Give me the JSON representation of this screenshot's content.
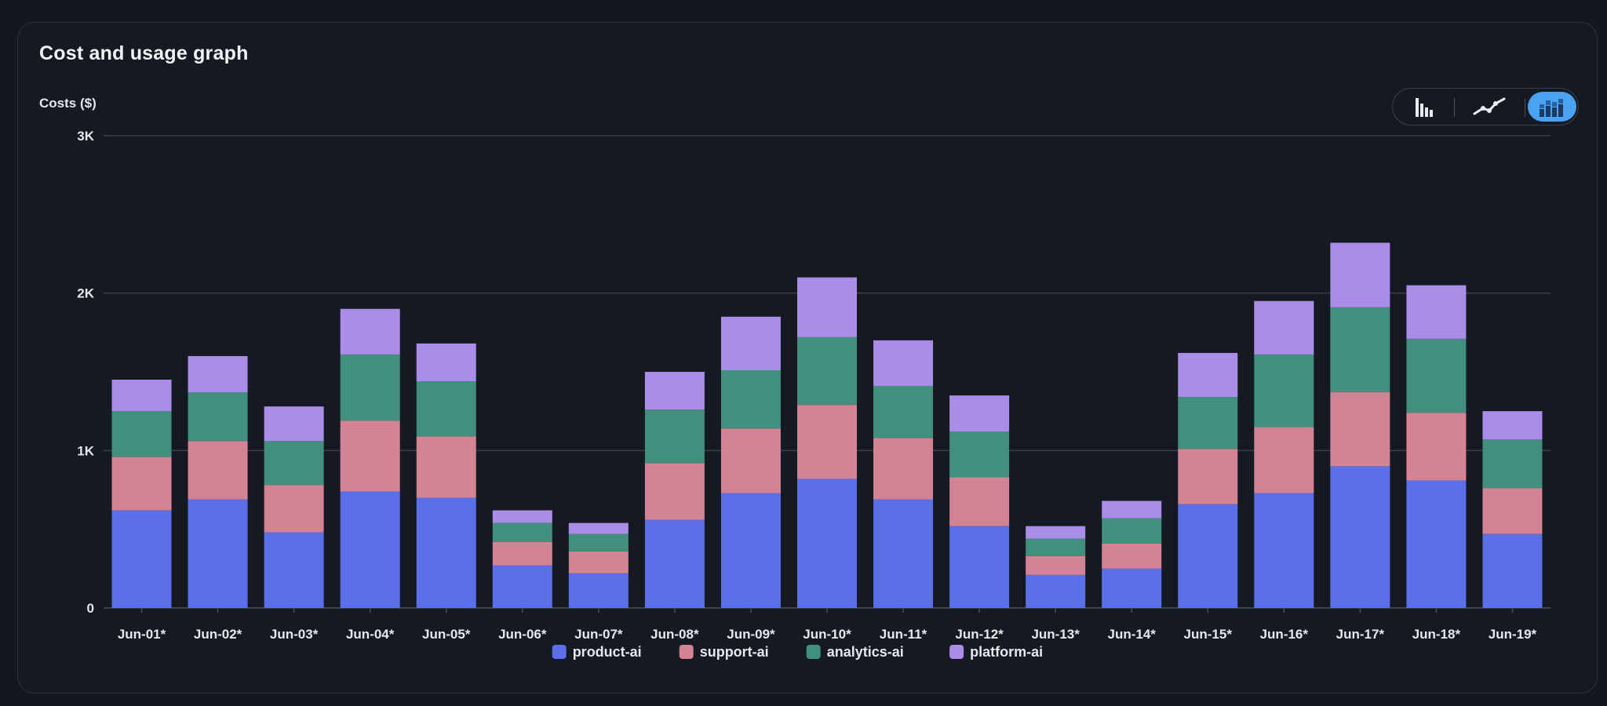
{
  "panel": {
    "title": "Cost and usage graph"
  },
  "view_toggle": {
    "options": [
      {
        "name": "bar-chart-icon",
        "active": false
      },
      {
        "name": "line-chart-icon",
        "active": false
      },
      {
        "name": "stacked-bar-chart-icon",
        "active": true
      }
    ],
    "active_color": "#4aa3f0"
  },
  "chart_data": {
    "type": "bar",
    "stacked": true,
    "title": "",
    "xlabel": "",
    "ylabel": "Costs ($)",
    "ylim": [
      0,
      3000
    ],
    "yticks": [
      {
        "value": 0,
        "label": "0"
      },
      {
        "value": 1000,
        "label": "1K"
      },
      {
        "value": 2000,
        "label": "2K"
      },
      {
        "value": 3000,
        "label": "3K"
      }
    ],
    "grid": true,
    "legend_position": "bottom",
    "categories": [
      "Jun-01*",
      "Jun-02*",
      "Jun-03*",
      "Jun-04*",
      "Jun-05*",
      "Jun-06*",
      "Jun-07*",
      "Jun-08*",
      "Jun-09*",
      "Jun-10*",
      "Jun-11*",
      "Jun-12*",
      "Jun-13*",
      "Jun-14*",
      "Jun-15*",
      "Jun-16*",
      "Jun-17*",
      "Jun-18*",
      "Jun-19*"
    ],
    "series": [
      {
        "name": "product-ai",
        "color": "#5b6fe8",
        "values": [
          620,
          690,
          480,
          740,
          700,
          270,
          220,
          560,
          730,
          820,
          690,
          520,
          210,
          250,
          660,
          730,
          900,
          810,
          470
        ]
      },
      {
        "name": "support-ai",
        "color": "#d48395",
        "values": [
          340,
          370,
          300,
          450,
          390,
          150,
          140,
          360,
          410,
          470,
          390,
          310,
          120,
          160,
          350,
          420,
          470,
          430,
          290
        ]
      },
      {
        "name": "analytics-ai",
        "color": "#428f7d",
        "values": [
          290,
          310,
          280,
          420,
          350,
          120,
          110,
          340,
          370,
          430,
          330,
          290,
          110,
          160,
          330,
          460,
          540,
          470,
          310
        ]
      },
      {
        "name": "platform-ai",
        "color": "#a98de8",
        "values": [
          200,
          230,
          220,
          290,
          240,
          80,
          70,
          240,
          340,
          380,
          290,
          230,
          80,
          110,
          280,
          340,
          410,
          340,
          180
        ]
      }
    ]
  }
}
